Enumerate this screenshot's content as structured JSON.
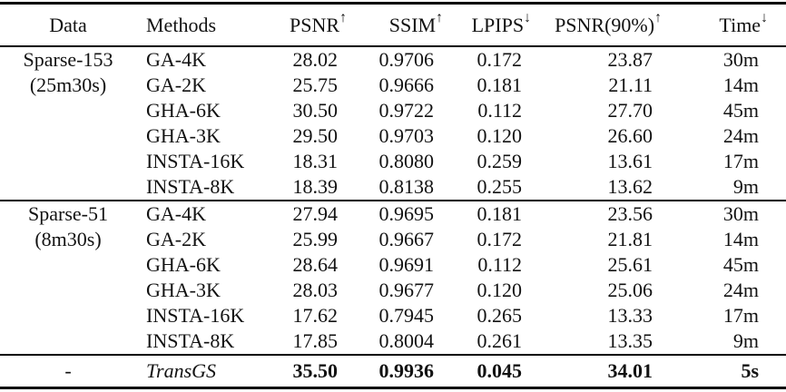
{
  "table": {
    "headers": [
      {
        "label": "Data",
        "arrow": ""
      },
      {
        "label": "Methods",
        "arrow": ""
      },
      {
        "label": "PSNR",
        "arrow": "↑"
      },
      {
        "label": "SSIM",
        "arrow": "↑"
      },
      {
        "label": "LPIPS",
        "arrow": "↓"
      },
      {
        "label": "PSNR(90%)",
        "arrow": "↑"
      },
      {
        "label": "Time",
        "arrow": "↓"
      }
    ],
    "rows": [
      {
        "data": "Sparse-153",
        "method": "GA-4K",
        "psnr": "28.02",
        "ssim": "0.9706",
        "lpips": "0.172",
        "psnr90": "23.87",
        "time": "30m"
      },
      {
        "data": "(25m30s)",
        "method": "GA-2K",
        "psnr": "25.75",
        "ssim": "0.9666",
        "lpips": "0.181",
        "psnr90": "21.11",
        "time": "14m"
      },
      {
        "data": "",
        "method": "GHA-6K",
        "psnr": "30.50",
        "ssim": "0.9722",
        "lpips": "0.112",
        "psnr90": "27.70",
        "time": "45m"
      },
      {
        "data": "",
        "method": "GHA-3K",
        "psnr": "29.50",
        "ssim": "0.9703",
        "lpips": "0.120",
        "psnr90": "26.60",
        "time": "24m"
      },
      {
        "data": "",
        "method": "INSTA-16K",
        "psnr": "18.31",
        "ssim": "0.8080",
        "lpips": "0.259",
        "psnr90": "13.61",
        "time": "17m"
      },
      {
        "data": "",
        "method": "INSTA-8K",
        "psnr": "18.39",
        "ssim": "0.8138",
        "lpips": "0.255",
        "psnr90": "13.62",
        "time": "9m"
      },
      {
        "data": "Sparse-51",
        "method": "GA-4K",
        "psnr": "27.94",
        "ssim": "0.9695",
        "lpips": "0.181",
        "psnr90": "23.56",
        "time": "30m"
      },
      {
        "data": "(8m30s)",
        "method": "GA-2K",
        "psnr": "25.99",
        "ssim": "0.9667",
        "lpips": "0.172",
        "psnr90": "21.81",
        "time": "14m"
      },
      {
        "data": "",
        "method": "GHA-6K",
        "psnr": "28.64",
        "ssim": "0.9691",
        "lpips": "0.112",
        "psnr90": "25.61",
        "time": "45m"
      },
      {
        "data": "",
        "method": "GHA-3K",
        "psnr": "28.03",
        "ssim": "0.9677",
        "lpips": "0.120",
        "psnr90": "25.06",
        "time": "24m"
      },
      {
        "data": "",
        "method": "INSTA-16K",
        "psnr": "17.62",
        "ssim": "0.7945",
        "lpips": "0.265",
        "psnr90": "13.33",
        "time": "17m"
      },
      {
        "data": "",
        "method": "INSTA-8K",
        "psnr": "17.85",
        "ssim": "0.8004",
        "lpips": "0.261",
        "psnr90": "13.35",
        "time": "9m"
      },
      {
        "data": "-",
        "method": "TransGS",
        "psnr": "35.50",
        "ssim": "0.9936",
        "lpips": "0.045",
        "psnr90": "34.01",
        "time": "5s"
      }
    ]
  },
  "chart_data": {
    "type": "table",
    "columns": [
      "Data",
      "Methods",
      "PSNR↑",
      "SSIM↑",
      "LPIPS↓",
      "PSNR(90%)↑",
      "Time↓"
    ],
    "groups": [
      {
        "data_label": "Sparse-153 (25m30s)",
        "rows": [
          [
            "GA-4K",
            28.02,
            0.9706,
            0.172,
            23.87,
            "30m"
          ],
          [
            "GA-2K",
            25.75,
            0.9666,
            0.181,
            21.11,
            "14m"
          ],
          [
            "GHA-6K",
            30.5,
            0.9722,
            0.112,
            27.7,
            "45m"
          ],
          [
            "GHA-3K",
            29.5,
            0.9703,
            0.12,
            26.6,
            "24m"
          ],
          [
            "INSTA-16K",
            18.31,
            0.808,
            0.259,
            13.61,
            "17m"
          ],
          [
            "INSTA-8K",
            18.39,
            0.8138,
            0.255,
            13.62,
            "9m"
          ]
        ]
      },
      {
        "data_label": "Sparse-51 (8m30s)",
        "rows": [
          [
            "GA-4K",
            27.94,
            0.9695,
            0.181,
            23.56,
            "30m"
          ],
          [
            "GA-2K",
            25.99,
            0.9667,
            0.172,
            21.81,
            "14m"
          ],
          [
            "GHA-6K",
            28.64,
            0.9691,
            0.112,
            25.61,
            "45m"
          ],
          [
            "GHA-3K",
            28.03,
            0.9677,
            0.12,
            25.06,
            "24m"
          ],
          [
            "INSTA-16K",
            17.62,
            0.7945,
            0.265,
            13.33,
            "17m"
          ],
          [
            "INSTA-8K",
            17.85,
            0.8004,
            0.261,
            13.35,
            "9m"
          ]
        ]
      },
      {
        "data_label": "-",
        "rows": [
          [
            "TransGS",
            35.5,
            0.9936,
            0.045,
            34.01,
            "5s"
          ]
        ]
      }
    ],
    "bold_row": "TransGS"
  }
}
